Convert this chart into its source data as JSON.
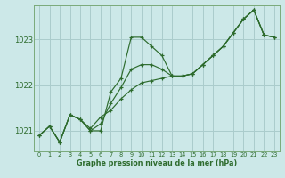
{
  "title": "Graphe pression niveau de la mer (hPa)",
  "bg_color": "#cce8e8",
  "grid_color": "#aacccc",
  "line_color": "#2d6b2d",
  "xlim": [
    -0.5,
    23.5
  ],
  "ylim": [
    1020.55,
    1023.75
  ],
  "yticks": [
    1021,
    1022,
    1023
  ],
  "xticks": [
    0,
    1,
    2,
    3,
    4,
    5,
    6,
    7,
    8,
    9,
    10,
    11,
    12,
    13,
    14,
    15,
    16,
    17,
    18,
    19,
    20,
    21,
    22,
    23
  ],
  "series": [
    [
      1020.9,
      1021.1,
      1020.75,
      1021.35,
      1021.25,
      1021.0,
      1021.0,
      1021.85,
      1022.15,
      1023.05,
      1023.05,
      1022.85,
      1022.65,
      1022.2,
      1022.2,
      1022.25,
      1022.45,
      1022.65,
      1022.85,
      1023.15,
      1023.45,
      1023.65,
      1023.1,
      1023.05
    ],
    [
      1020.9,
      1021.1,
      1020.75,
      1021.35,
      1021.25,
      1021.0,
      1021.15,
      1021.6,
      1021.95,
      1022.35,
      1022.45,
      1022.45,
      1022.35,
      1022.2,
      1022.2,
      1022.25,
      1022.45,
      1022.65,
      1022.85,
      1023.15,
      1023.45,
      1023.65,
      1023.1,
      1023.05
    ],
    [
      1020.9,
      1021.1,
      1020.75,
      1021.35,
      1021.25,
      1021.05,
      1021.3,
      1021.45,
      1021.7,
      1021.9,
      1022.05,
      1022.1,
      1022.15,
      1022.2,
      1022.2,
      1022.25,
      1022.45,
      1022.65,
      1022.85,
      1023.15,
      1023.45,
      1023.65,
      1023.1,
      1023.05
    ]
  ]
}
